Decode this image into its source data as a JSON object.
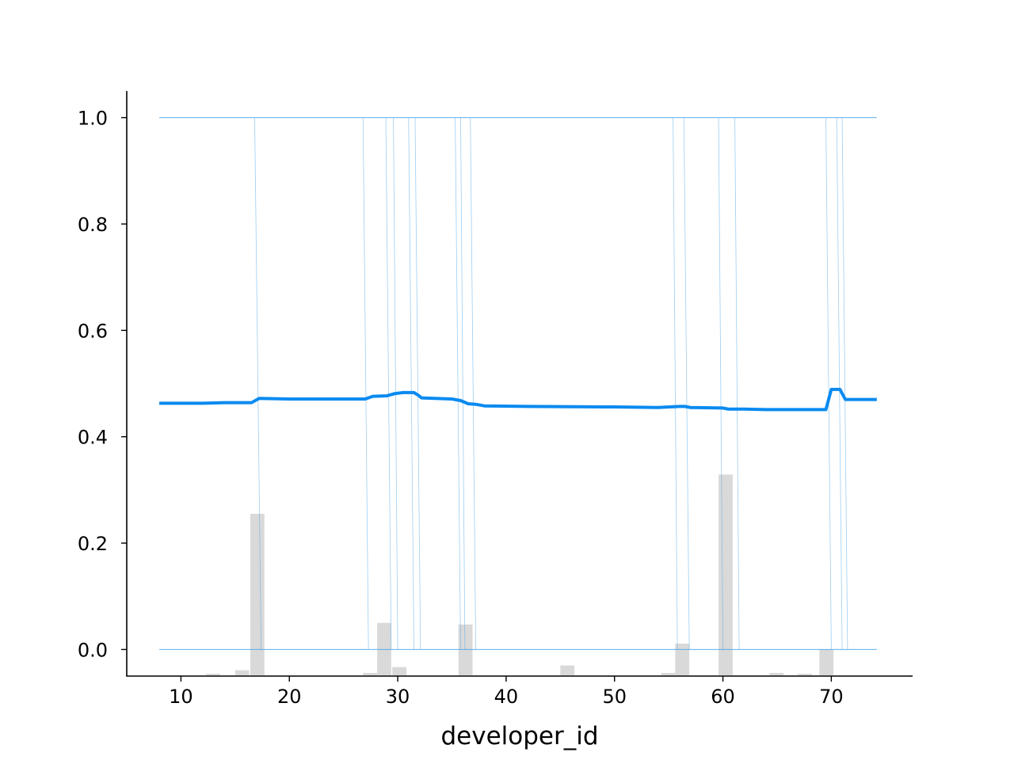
{
  "chart_data": {
    "type": "line",
    "title": "",
    "xlabel": "developer_id",
    "ylabel": "",
    "xlim": [
      5.0,
      77.5
    ],
    "ylim": [
      -0.05,
      1.05
    ],
    "x_ticks": [
      10,
      20,
      30,
      40,
      50,
      60,
      70
    ],
    "x_tick_labels": [
      "10",
      "20",
      "30",
      "40",
      "50",
      "60",
      "70"
    ],
    "y_ticks": [
      0.0,
      0.2,
      0.4,
      0.6,
      0.8,
      1.0
    ],
    "y_tick_labels": [
      "0.0",
      "0.2",
      "0.4",
      "0.6",
      "0.8",
      "1.0"
    ],
    "grid": false,
    "colors": {
      "average": "#0a8af0",
      "ice": "#4da6ea",
      "histogram": "#d9d9d9",
      "axis": "#000000"
    },
    "series": [
      {
        "kind": "average",
        "x": [
          8,
          10,
          12,
          14,
          16.5,
          17.2,
          20,
          24,
          27,
          27.7,
          29,
          29.7,
          30.5,
          31.5,
          31.9,
          32.2,
          35,
          35.8,
          36.5,
          37.2,
          38,
          42,
          50,
          54,
          56,
          56.5,
          57,
          60,
          60.5,
          62,
          64,
          67,
          69.5,
          70,
          70.8,
          71.3,
          71.7,
          74.2
        ],
        "y": [
          0.463,
          0.463,
          0.463,
          0.464,
          0.464,
          0.472,
          0.471,
          0.471,
          0.471,
          0.476,
          0.477,
          0.481,
          0.483,
          0.483,
          0.478,
          0.473,
          0.471,
          0.468,
          0.462,
          0.461,
          0.458,
          0.457,
          0.456,
          0.455,
          0.457,
          0.457,
          0.455,
          0.454,
          0.452,
          0.452,
          0.451,
          0.451,
          0.451,
          0.489,
          0.489,
          0.47,
          0.47,
          0.47
        ]
      },
      {
        "kind": "ice",
        "x": [
          8,
          74.2
        ],
        "y": [
          1.0,
          1.0
        ]
      },
      {
        "kind": "ice",
        "x": [
          8,
          74.2
        ],
        "y": [
          0.0,
          0.0
        ]
      }
    ],
    "ice_transitions": [
      {
        "x_from": 16.8,
        "x_to": 17.4
      },
      {
        "x_from": 26.8,
        "x_to": 27.3
      },
      {
        "x_from": 28.9,
        "x_to": 29.4
      },
      {
        "x_from": 29.6,
        "x_to": 30.0
      },
      {
        "x_from": 31.0,
        "x_to": 31.5
      },
      {
        "x_from": 31.6,
        "x_to": 32.1
      },
      {
        "x_from": 35.3,
        "x_to": 35.8
      },
      {
        "x_from": 35.8,
        "x_to": 36.2
      },
      {
        "x_from": 36.7,
        "x_to": 37.2
      },
      {
        "x_from": 55.4,
        "x_to": 55.8
      },
      {
        "x_from": 56.4,
        "x_to": 56.9
      },
      {
        "x_from": 59.6,
        "x_to": 60.0
      },
      {
        "x_from": 61.1,
        "x_to": 61.5
      },
      {
        "x_from": 69.5,
        "x_to": 70.0
      },
      {
        "x_from": 70.5,
        "x_to": 71.0
      },
      {
        "x_from": 71.0,
        "x_to": 71.5
      }
    ],
    "histogram": {
      "bin_width": 1.3,
      "bins": [
        {
          "x": 12.3,
          "y": -0.047
        },
        {
          "x": 15.0,
          "y": -0.039
        },
        {
          "x": 16.4,
          "y": 0.255
        },
        {
          "x": 26.8,
          "y": -0.044
        },
        {
          "x": 28.1,
          "y": 0.05
        },
        {
          "x": 29.5,
          "y": -0.033
        },
        {
          "x": 35.6,
          "y": 0.047
        },
        {
          "x": 45.0,
          "y": -0.03
        },
        {
          "x": 54.3,
          "y": -0.044
        },
        {
          "x": 55.6,
          "y": 0.011
        },
        {
          "x": 59.6,
          "y": 0.329
        },
        {
          "x": 64.3,
          "y": -0.044
        },
        {
          "x": 66.9,
          "y": -0.046
        },
        {
          "x": 68.9,
          "y": 0.0
        }
      ]
    }
  }
}
